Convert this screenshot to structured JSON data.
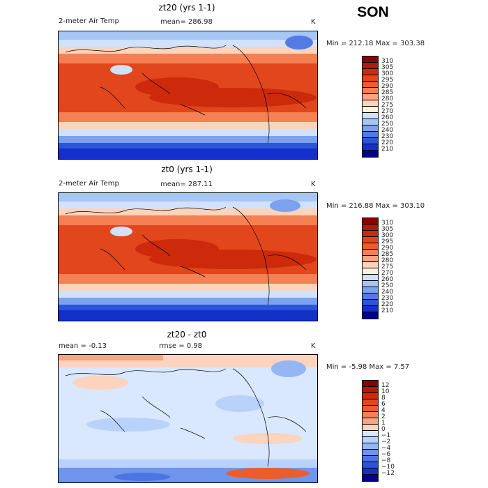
{
  "season": "SON",
  "panels": [
    {
      "title": "zt20 (yrs 1-1)",
      "left_label": "2-meter Air Temp",
      "mean_text": "mean= 286.98",
      "units": "K",
      "minmax": "Min = 212.18 Max = 303.38"
    },
    {
      "title": "zt0 (yrs 1-1)",
      "left_label": "2-meter Air Temp",
      "mean_text": "mean= 287.11",
      "units": "K",
      "minmax": "Min = 216.88 Max = 303.10"
    },
    {
      "title": "zt20 - zt0",
      "left_label": "mean =   -0.13",
      "mean_text": "rmse =    0.98",
      "units": "K",
      "minmax": "Min =  -5.98 Max =   7.57"
    }
  ],
  "colorbars": {
    "temp": {
      "labels": [
        "310",
        "305",
        "300",
        "295",
        "290",
        "285",
        "280",
        "275",
        "270",
        "260",
        "250",
        "240",
        "230",
        "220",
        "210"
      ],
      "colors": [
        "#8b0000",
        "#b01a06",
        "#cc2a0a",
        "#e2461c",
        "#ec5d2c",
        "#f48054",
        "#fba386",
        "#fcd3bc",
        "#fff2e0",
        "#d0e2ff",
        "#a6c6f6",
        "#7aa2ee",
        "#527ce4",
        "#2c55d8",
        "#1330c8",
        "#00008b"
      ]
    },
    "diff": {
      "labels": [
        "12",
        "10",
        "8",
        "6",
        "4",
        "2",
        "1",
        "0",
        "−1",
        "−2",
        "−4",
        "−6",
        "−8",
        "−10",
        "−12"
      ],
      "colors": [
        "#8b0000",
        "#b01a06",
        "#cc2a0a",
        "#e2461c",
        "#ec5d2c",
        "#f48054",
        "#fba386",
        "#fcd3bc",
        "#d9e8ff",
        "#b8d2fb",
        "#94b6f4",
        "#6f95ec",
        "#4c74e2",
        "#2a53d6",
        "#1330c8",
        "#00008b"
      ]
    }
  }
}
